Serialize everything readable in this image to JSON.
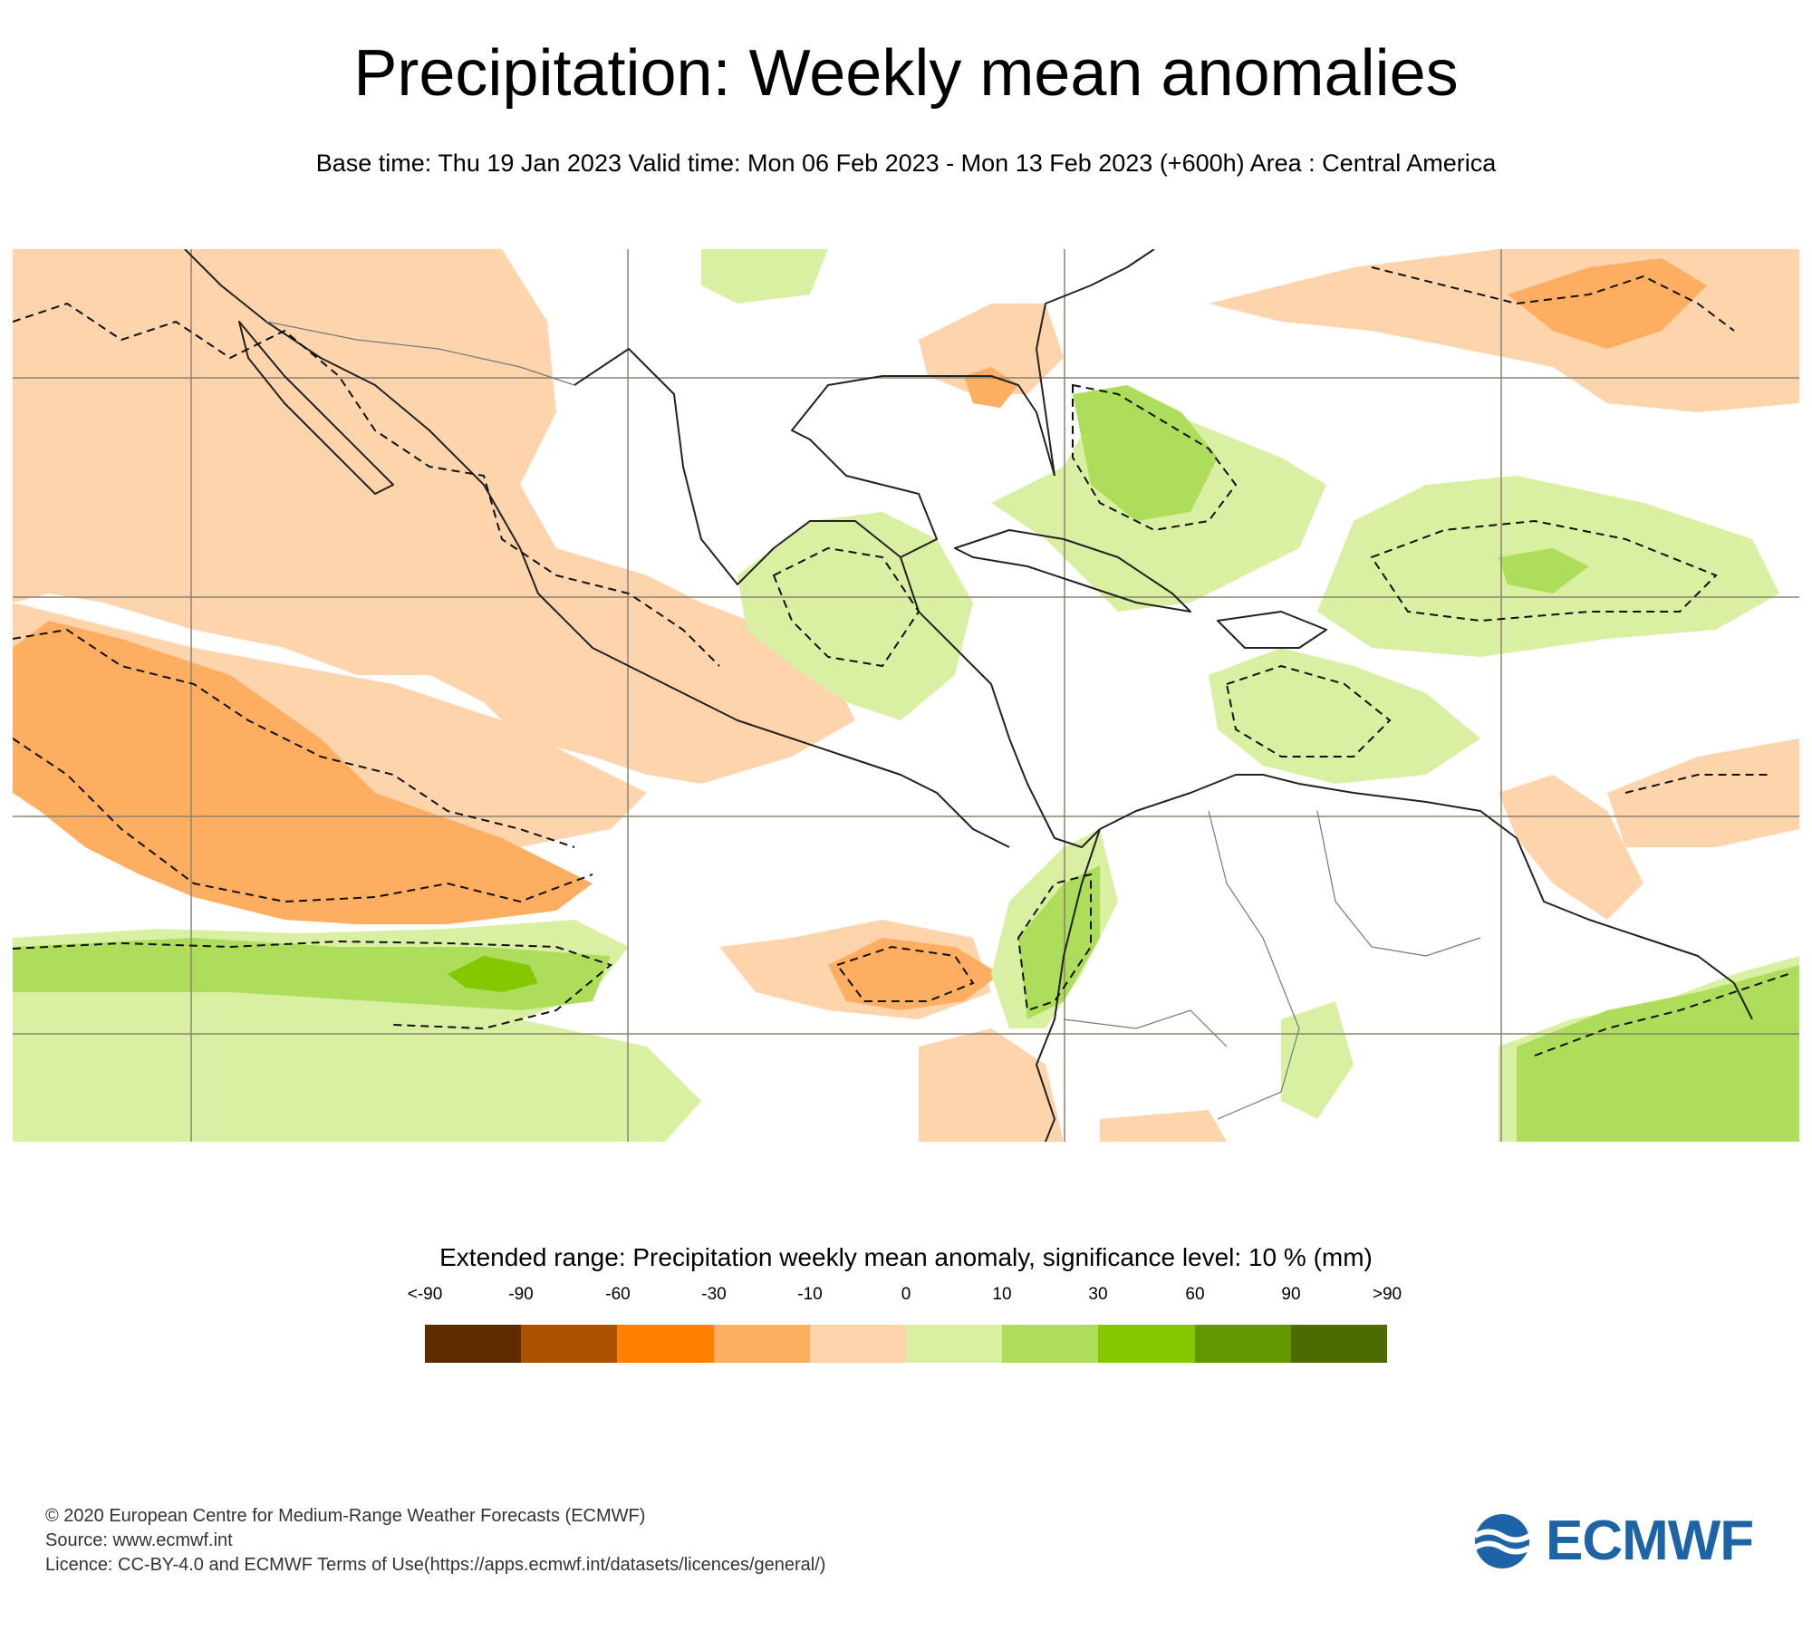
{
  "title": "Precipitation: Weekly mean anomalies",
  "subtitle": "Base time: Thu 19 Jan 2023 Valid time: Mon 06 Feb 2023 - Mon 13 Feb 2023 (+600h) Area : Central America",
  "map": {
    "area": "Central America",
    "dashed_contour_meaning": "significance level: 10 %"
  },
  "legend": {
    "title": "Extended range: Precipitation weekly mean anomaly, significance level: 10 % (mm)",
    "ticks": [
      "<-90",
      "-90",
      "-60",
      "-30",
      "-10",
      "0",
      "10",
      "30",
      "60",
      "90",
      ">90"
    ],
    "colors": [
      "#5c2c00",
      "#aa5200",
      "#ff7f00",
      "#fdae61",
      "#fdd4ac",
      "#d9f0a3",
      "#addd5a",
      "#86c800",
      "#629700",
      "#4e6b00"
    ]
  },
  "footer": {
    "line1": "© 2020 European Centre for Medium-Range Weather Forecasts (ECMWF)",
    "line2": "Source: www.ecmwf.int",
    "line3": "Licence: CC-BY-4.0 and ECMWF Terms of Use(https://apps.ecmwf.int/datasets/licences/general/)"
  },
  "logo": {
    "text": "ECMWF",
    "color": "#1d64a6"
  }
}
